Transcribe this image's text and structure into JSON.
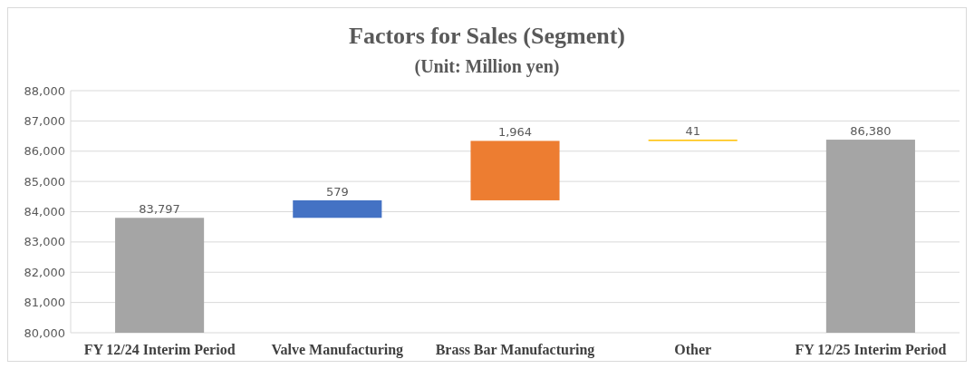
{
  "chart_data": {
    "type": "bar",
    "title": "Factors for Sales (Segment)",
    "subtitle": "(Unit: Million yen)",
    "categories": [
      "FY 12/24 Interim Period",
      "Valve Manufacturing",
      "Brass Bar Manufacturing",
      "Other",
      "FY 12/25 Interim Period"
    ],
    "values": [
      83797,
      579,
      1964,
      41,
      86380
    ],
    "base": [
      null,
      83797,
      84376,
      86340,
      null
    ],
    "colors": [
      "#a5a5a5",
      "#4472c4",
      "#ed7d31",
      "#ffc000",
      "#a5a5a5"
    ],
    "value_labels": [
      "83,797",
      "579",
      "1,964",
      "41",
      "86,380"
    ],
    "ylim": [
      80000,
      88000
    ],
    "yticks": [
      {
        "value": 80000,
        "label": "80,000"
      },
      {
        "value": 81000,
        "label": "81,000"
      },
      {
        "value": 82000,
        "label": "82,000"
      },
      {
        "value": 83000,
        "label": "83,000"
      },
      {
        "value": 84000,
        "label": "84,000"
      },
      {
        "value": 85000,
        "label": "85,000"
      },
      {
        "value": 86000,
        "label": "86,000"
      },
      {
        "value": 87000,
        "label": "87,000"
      },
      {
        "value": 88000,
        "label": "88,000"
      }
    ],
    "grid": "y"
  }
}
